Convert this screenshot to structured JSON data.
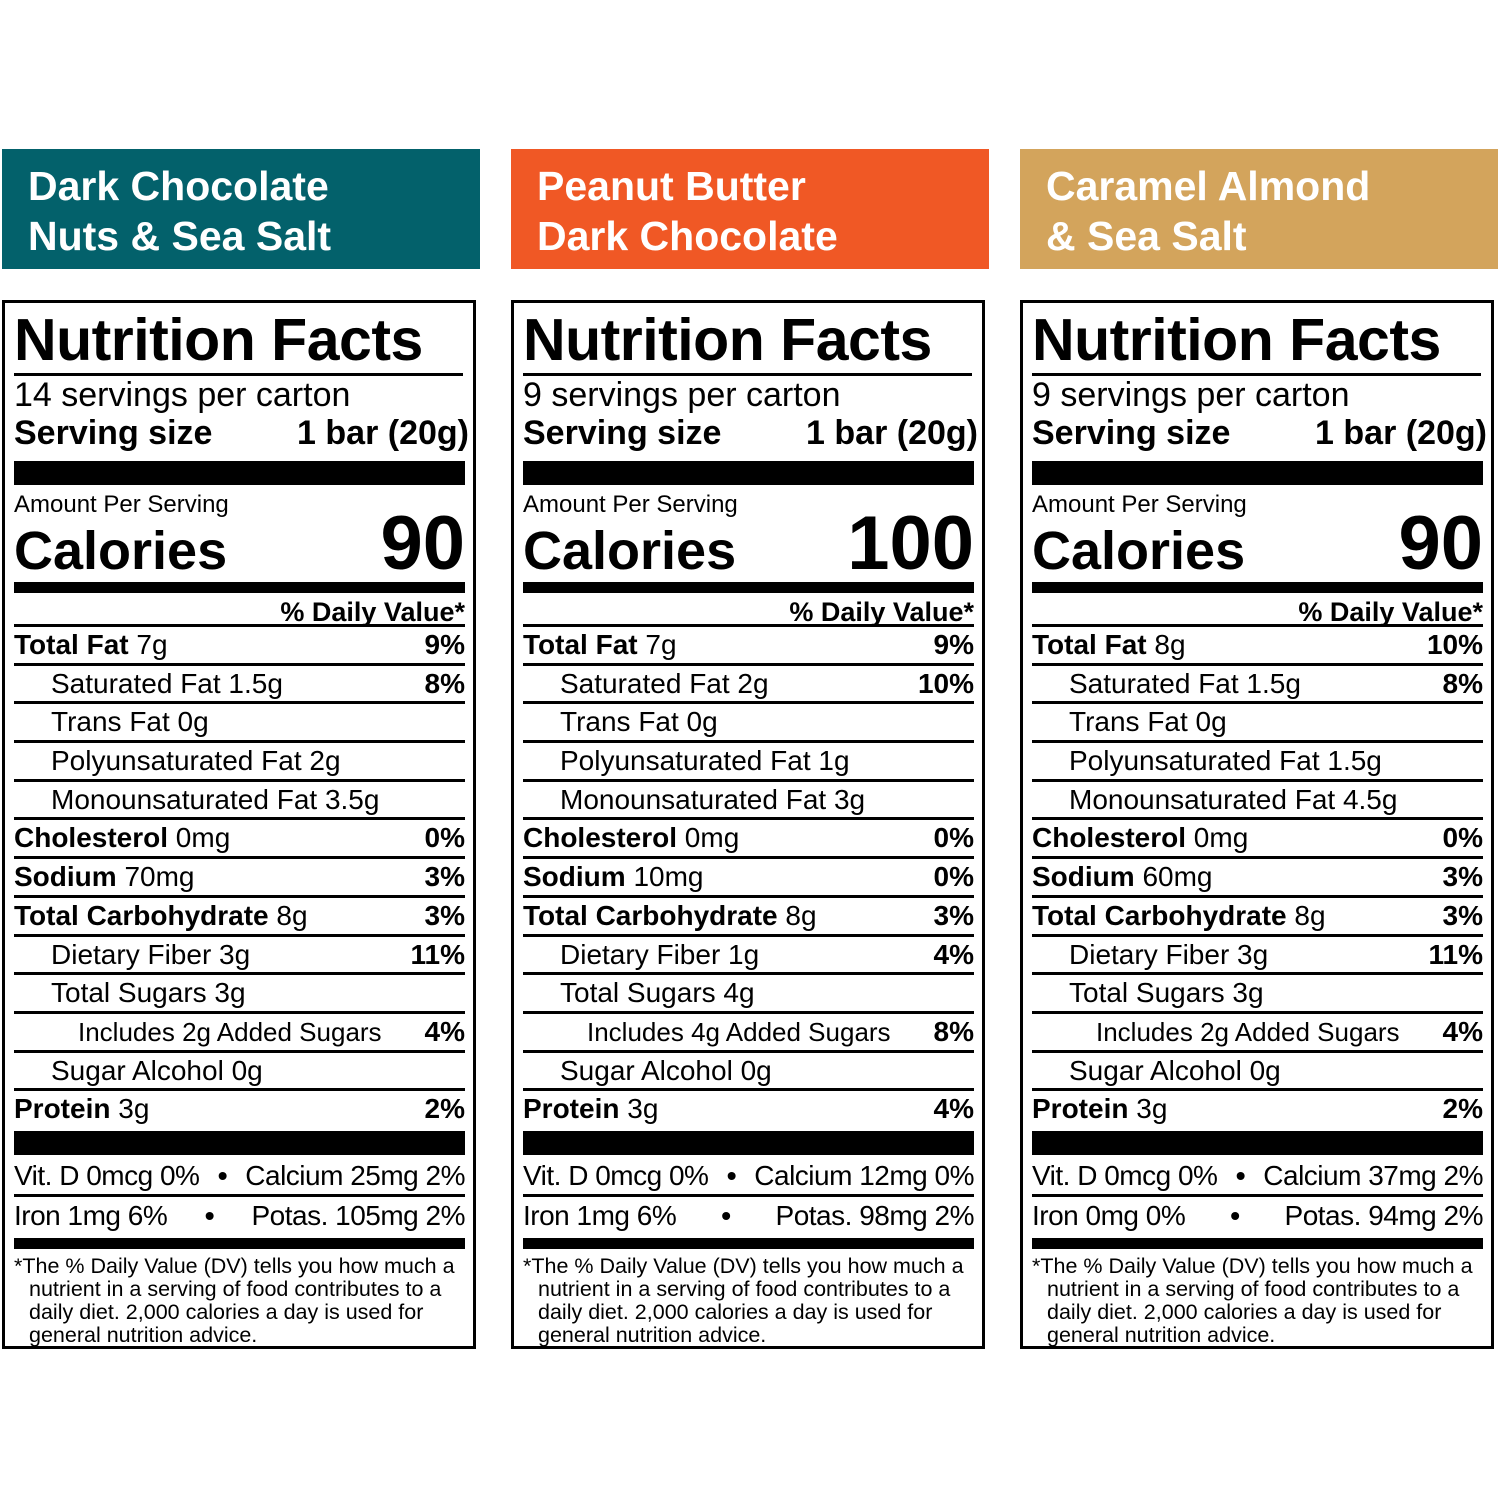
{
  "colors": {
    "teal": "#03616b",
    "orange": "#f05825",
    "tan": "#d3a45c"
  },
  "products": [
    {
      "title_line1": "Dark Chocolate",
      "title_line2": "Nuts & Sea Salt",
      "nutrition_title": "Nutrition Facts",
      "servings": "14 servings per carton",
      "serving_size_label": "Serving size",
      "serving_size_value": "1 bar (20g)",
      "amount_per_serving": "Amount Per Serving",
      "calories_label": "Calories",
      "calories": "90",
      "dv_header": "% Daily Value*",
      "rows": [
        {
          "bold": "Total Fat",
          "text": " 7g",
          "pct": "9%"
        },
        {
          "bold": "",
          "text": "Saturated Fat 1.5g",
          "pct": "8%"
        },
        {
          "bold": "",
          "text": "Trans Fat 0g",
          "pct": ""
        },
        {
          "bold": "",
          "text": "Polyunsaturated Fat 2g",
          "pct": ""
        },
        {
          "bold": "",
          "text": "Monounsaturated Fat 3.5g",
          "pct": ""
        },
        {
          "bold": "Cholesterol",
          "text": " 0mg",
          "pct": "0%"
        },
        {
          "bold": "Sodium",
          "text": " 70mg",
          "pct": "3%"
        },
        {
          "bold": "Total Carbohydrate",
          "text": " 8g",
          "pct": "3%"
        },
        {
          "bold": "",
          "text": "Dietary Fiber 3g",
          "pct": "11%"
        },
        {
          "bold": "",
          "text": "Total Sugars 3g",
          "pct": ""
        },
        {
          "bold": "",
          "text": "Includes 2g Added Sugars",
          "pct": "4%"
        },
        {
          "bold": "",
          "text": "Sugar Alcohol 0g",
          "pct": ""
        },
        {
          "bold": "Protein",
          "text": " 3g",
          "pct": "2%"
        }
      ],
      "vit_d": "Vit. D 0mcg 0%",
      "calcium": "Calcium 25mg 2%",
      "iron": "Iron 1mg 6%",
      "potassium": "Potas. 105mg 2%",
      "bullet": "•",
      "footnote": "*The % Daily Value (DV) tells you how much a nutrient in a serving of food contributes to a daily diet. 2,000 calories a day is used for general nutrition advice."
    },
    {
      "title_line1": "Peanut Butter",
      "title_line2": "Dark Chocolate",
      "nutrition_title": "Nutrition Facts",
      "servings": "9 servings per carton",
      "serving_size_label": "Serving size",
      "serving_size_value": "1 bar (20g)",
      "amount_per_serving": "Amount Per Serving",
      "calories_label": "Calories",
      "calories": "100",
      "dv_header": "% Daily Value*",
      "rows": [
        {
          "bold": "Total Fat",
          "text": " 7g",
          "pct": "9%"
        },
        {
          "bold": "",
          "text": "Saturated Fat 2g",
          "pct": "10%"
        },
        {
          "bold": "",
          "text": "Trans Fat 0g",
          "pct": ""
        },
        {
          "bold": "",
          "text": "Polyunsaturated Fat 1g",
          "pct": ""
        },
        {
          "bold": "",
          "text": "Monounsaturated Fat 3g",
          "pct": ""
        },
        {
          "bold": "Cholesterol",
          "text": " 0mg",
          "pct": "0%"
        },
        {
          "bold": "Sodium",
          "text": " 10mg",
          "pct": "0%"
        },
        {
          "bold": "Total Carbohydrate",
          "text": " 8g",
          "pct": "3%"
        },
        {
          "bold": "",
          "text": "Dietary Fiber 1g",
          "pct": "4%"
        },
        {
          "bold": "",
          "text": "Total Sugars 4g",
          "pct": ""
        },
        {
          "bold": "",
          "text": "Includes 4g Added Sugars",
          "pct": "8%"
        },
        {
          "bold": "",
          "text": "Sugar Alcohol 0g",
          "pct": ""
        },
        {
          "bold": "Protein",
          "text": " 3g",
          "pct": "4%"
        }
      ],
      "vit_d": "Vit. D 0mcg 0%",
      "calcium": "Calcium 12mg 0%",
      "iron": "Iron 1mg 6%",
      "potassium": "Potas. 98mg 2%",
      "bullet": "•",
      "footnote": "*The % Daily Value (DV) tells you how much a nutrient in a serving of food contributes to a daily diet. 2,000 calories a day is used for general nutrition advice."
    },
    {
      "title_line1": "Caramel Almond",
      "title_line2": "& Sea Salt",
      "nutrition_title": "Nutrition Facts",
      "servings": "9 servings per carton",
      "serving_size_label": "Serving size",
      "serving_size_value": "1 bar (20g)",
      "amount_per_serving": "Amount Per Serving",
      "calories_label": "Calories",
      "calories": "90",
      "dv_header": "% Daily Value*",
      "rows": [
        {
          "bold": "Total Fat",
          "text": " 8g",
          "pct": "10%"
        },
        {
          "bold": "",
          "text": "Saturated Fat 1.5g",
          "pct": "8%"
        },
        {
          "bold": "",
          "text": "Trans Fat 0g",
          "pct": ""
        },
        {
          "bold": "",
          "text": "Polyunsaturated Fat 1.5g",
          "pct": ""
        },
        {
          "bold": "",
          "text": "Monounsaturated Fat 4.5g",
          "pct": ""
        },
        {
          "bold": "Cholesterol",
          "text": " 0mg",
          "pct": "0%"
        },
        {
          "bold": "Sodium",
          "text": " 60mg",
          "pct": "3%"
        },
        {
          "bold": "Total Carbohydrate",
          "text": " 8g",
          "pct": "3%"
        },
        {
          "bold": "",
          "text": "Dietary Fiber 3g",
          "pct": "11%"
        },
        {
          "bold": "",
          "text": "Total Sugars 3g",
          "pct": ""
        },
        {
          "bold": "",
          "text": "Includes 2g Added Sugars",
          "pct": "4%"
        },
        {
          "bold": "",
          "text": "Sugar Alcohol 0g",
          "pct": ""
        },
        {
          "bold": "Protein",
          "text": " 3g",
          "pct": "2%"
        }
      ],
      "vit_d": "Vit. D 0mcg 0%",
      "calcium": "Calcium 37mg 2%",
      "iron": "Iron 0mg 0%",
      "potassium": "Potas. 94mg 2%",
      "bullet": "•",
      "footnote": "*The % Daily Value (DV) tells you how much a nutrient in a serving of food contributes to a daily diet. 2,000 calories a day is used for general nutrition advice."
    }
  ]
}
